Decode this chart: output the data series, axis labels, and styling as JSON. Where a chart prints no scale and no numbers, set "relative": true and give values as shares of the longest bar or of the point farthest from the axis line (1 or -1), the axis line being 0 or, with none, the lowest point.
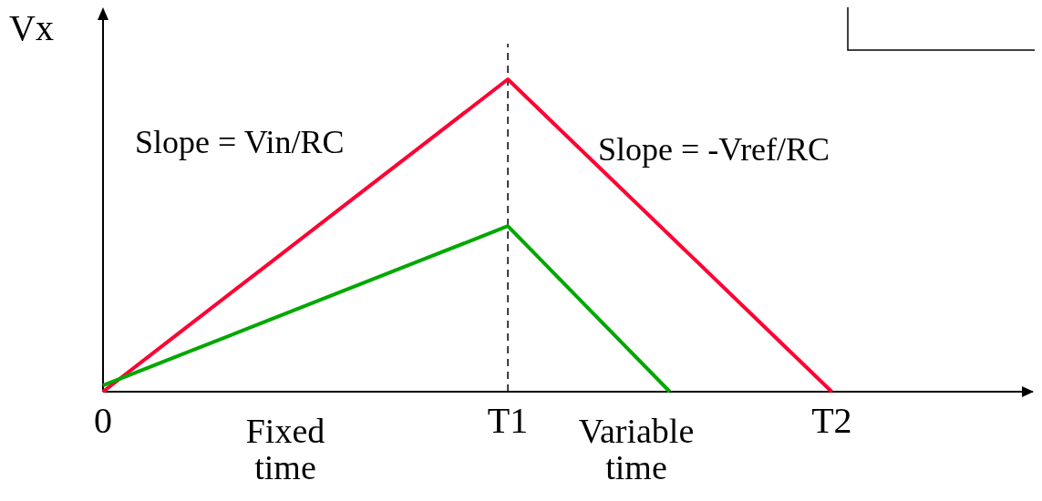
{
  "chart_data": {
    "type": "line",
    "relative": true,
    "ylabel": "Vx",
    "categories": [
      "0",
      null,
      null,
      null,
      null,
      "T1",
      null,
      null,
      null,
      "T2",
      null,
      null
    ],
    "series": [
      {
        "color": "#ff0033",
        "values": [
          0,
          0.2,
          0.4,
          0.6,
          0.8,
          1,
          0.75,
          0.5,
          0.25,
          0,
          null,
          null
        ]
      },
      {
        "color": "#00a800",
        "values": [
          0.02,
          0.122,
          0.224,
          0.326,
          0.428,
          0.53,
          0.265,
          0,
          null,
          null,
          null,
          null
        ]
      }
    ],
    "ref_lines": [
      {
        "axis": "x",
        "value": "T1",
        "color": "#000000",
        "line_style": "dashed"
      }
    ],
    "annotations": [
      "Slope = Vin/RC",
      "Slope = -Vref/RC",
      "Fixed time",
      "Variable time"
    ],
    "grid": false,
    "line_style": "solid"
  }
}
